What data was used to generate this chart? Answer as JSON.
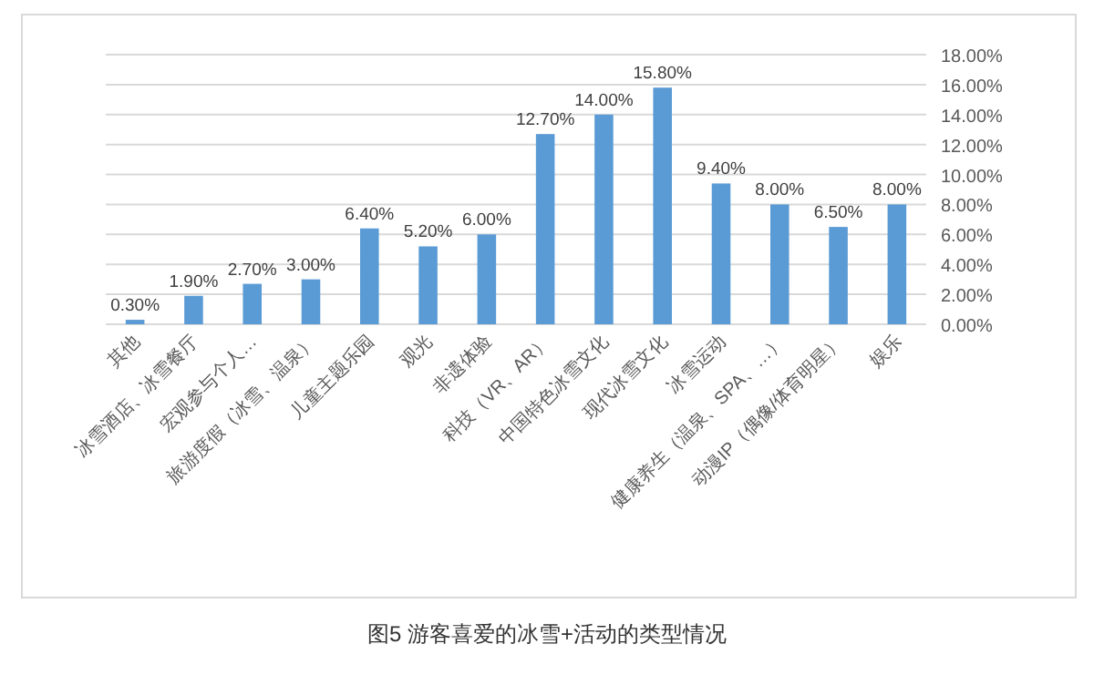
{
  "chart_data": {
    "type": "bar",
    "annotations": [
      "图5 游客喜爱的冰雪+活动的类型情况"
    ],
    "categories": [
      "其他",
      "冰雪酒店、冰雪餐厅",
      "宏观参与个人…",
      "旅游度假（冰雪、温泉）",
      "儿童主题乐园",
      "观光",
      "非遗体验",
      "科技（VR、AR）",
      "中国特色冰雪文化",
      "现代冰雪文化",
      "冰雪运动",
      "健康养生（温泉、SPA、…）",
      "动漫IP（偶像/体育明星）",
      "娱乐"
    ],
    "values": [
      0.3,
      1.9,
      2.7,
      3.0,
      6.4,
      5.2,
      6.0,
      12.7,
      14.0,
      15.8,
      9.4,
      8.0,
      6.5,
      8.0
    ],
    "value_labels": [
      "0.30%",
      "1.90%",
      "2.70%",
      "3.00%",
      "6.40%",
      "5.20%",
      "6.00%",
      "12.70%",
      "14.00%",
      "15.80%",
      "9.40%",
      "8.00%",
      "6.50%",
      "8.00%"
    ],
    "color": "#5b9bd5",
    "ylim": [
      0,
      18
    ],
    "yticks": [
      {
        "value": 0,
        "label": "0.00%"
      },
      {
        "value": 2,
        "label": "2.00%"
      },
      {
        "value": 4,
        "label": "4.00%"
      },
      {
        "value": 6,
        "label": "6.00%"
      },
      {
        "value": 8,
        "label": "8.00%"
      },
      {
        "value": 10,
        "label": "10.00%"
      },
      {
        "value": 12,
        "label": "12.00%"
      },
      {
        "value": 14,
        "label": "14.00%"
      },
      {
        "value": 16,
        "label": "16.00%"
      },
      {
        "value": 18,
        "label": "18.00%"
      }
    ],
    "grid": "y"
  }
}
